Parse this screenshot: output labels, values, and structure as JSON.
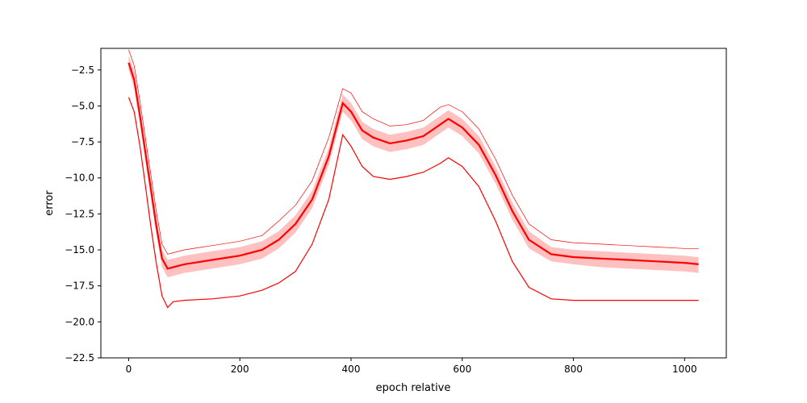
{
  "chart_data": {
    "type": "line",
    "title": "",
    "xlabel": "epoch relative",
    "ylabel": "error",
    "xlim": [
      -50,
      1075
    ],
    "ylim": [
      -22.5,
      -1.0
    ],
    "xticks": [
      0,
      200,
      400,
      600,
      800,
      1000
    ],
    "yticks": [
      -22.5,
      -20.0,
      -17.5,
      -15.0,
      -12.5,
      -10.0,
      -7.5,
      -5.0,
      -2.5
    ],
    "xtick_labels": [
      "0",
      "200",
      "400",
      "600",
      "800",
      "1000"
    ],
    "ytick_labels": [
      "−22.5",
      "−20.0",
      "−17.5",
      "−15.0",
      "−12.5",
      "−10.0",
      "−7.5",
      "−5.0",
      "−2.5"
    ],
    "grid": false,
    "legend": "none",
    "colors": {
      "line": "#ff0000",
      "band": "#ffc0c0"
    },
    "x": [
      0,
      10,
      20,
      30,
      40,
      50,
      60,
      70,
      80,
      100,
      150,
      200,
      240,
      270,
      300,
      330,
      360,
      385,
      400,
      420,
      440,
      470,
      500,
      530,
      560,
      575,
      600,
      630,
      660,
      690,
      720,
      760,
      800,
      850,
      900,
      950,
      1000,
      1025
    ],
    "series": [
      {
        "role": "mean",
        "values": [
          -2.0,
          -3.2,
          -5.6,
          -8.2,
          -10.8,
          -13.4,
          -15.6,
          -16.3,
          -16.2,
          -16.0,
          -15.7,
          -15.4,
          -15.0,
          -14.3,
          -13.2,
          -11.5,
          -8.5,
          -4.8,
          -5.4,
          -6.7,
          -7.2,
          -7.6,
          -7.4,
          -7.1,
          -6.3,
          -5.9,
          -6.5,
          -7.7,
          -9.8,
          -12.3,
          -14.3,
          -15.3,
          -15.5,
          -15.6,
          -15.7,
          -15.8,
          -15.9,
          -16.0
        ]
      },
      {
        "role": "band_upper",
        "values": [
          -1.5,
          -2.6,
          -5.0,
          -7.6,
          -10.2,
          -12.8,
          -15.0,
          -15.7,
          -15.6,
          -15.4,
          -15.1,
          -14.8,
          -14.4,
          -13.7,
          -12.6,
          -10.9,
          -7.9,
          -4.2,
          -4.8,
          -6.1,
          -6.6,
          -7.0,
          -6.8,
          -6.5,
          -5.7,
          -5.3,
          -5.9,
          -7.1,
          -9.2,
          -11.7,
          -13.7,
          -14.8,
          -15.0,
          -15.1,
          -15.2,
          -15.3,
          -15.4,
          -15.5
        ]
      },
      {
        "role": "band_lower",
        "values": [
          -2.5,
          -3.8,
          -6.2,
          -8.8,
          -11.4,
          -14.0,
          -16.2,
          -16.9,
          -16.8,
          -16.6,
          -16.3,
          -16.0,
          -15.6,
          -14.9,
          -13.8,
          -12.1,
          -9.1,
          -5.4,
          -6.0,
          -7.3,
          -7.8,
          -8.2,
          -8.0,
          -7.7,
          -6.9,
          -6.5,
          -7.1,
          -8.3,
          -10.4,
          -12.9,
          -14.9,
          -15.8,
          -16.0,
          -16.2,
          -16.3,
          -16.4,
          -16.5,
          -16.6
        ]
      },
      {
        "role": "max",
        "values": [
          -1.1,
          -2.2,
          -4.6,
          -7.2,
          -9.8,
          -12.4,
          -14.6,
          -15.3,
          -15.2,
          -15.0,
          -14.7,
          -14.4,
          -14.0,
          -13.0,
          -11.9,
          -10.2,
          -7.2,
          -3.8,
          -4.1,
          -5.4,
          -5.9,
          -6.4,
          -6.3,
          -6.0,
          -5.1,
          -4.9,
          -5.4,
          -6.6,
          -8.7,
          -11.2,
          -13.2,
          -14.3,
          -14.5,
          -14.6,
          -14.7,
          -14.8,
          -14.9,
          -14.9
        ]
      },
      {
        "role": "min",
        "values": [
          -4.4,
          -5.4,
          -7.7,
          -10.5,
          -13.4,
          -16.0,
          -18.2,
          -19.0,
          -18.6,
          -18.5,
          -18.4,
          -18.2,
          -17.8,
          -17.3,
          -16.5,
          -14.6,
          -11.5,
          -7.0,
          -7.8,
          -9.2,
          -9.9,
          -10.1,
          -9.9,
          -9.6,
          -9.0,
          -8.6,
          -9.2,
          -10.6,
          -13.0,
          -15.8,
          -17.6,
          -18.4,
          -18.5,
          -18.5,
          -18.5,
          -18.5,
          -18.5,
          -18.5
        ]
      }
    ]
  }
}
